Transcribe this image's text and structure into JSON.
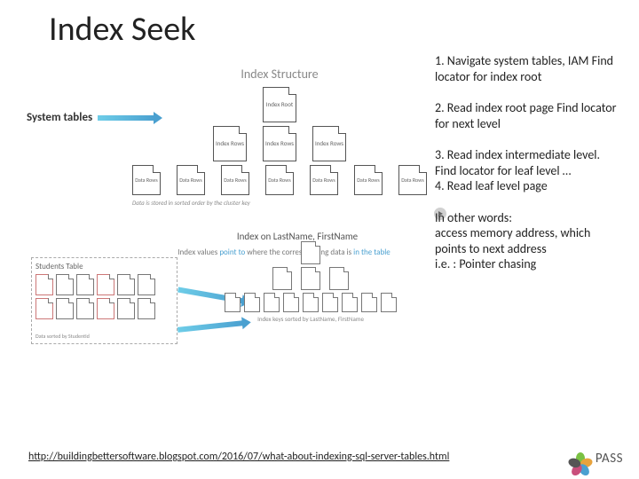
{
  "title": "Index Seek",
  "system_tables_label": "System tables",
  "upper_diagram": {
    "title": "Index Structure",
    "root_label": "Index\nRoot",
    "mid_label": "Index\nRows",
    "leaf_label": "Data\nRows",
    "footer": "Data is stored in sorted order by the cluster key",
    "mid_count": 3,
    "leaf_count": 7,
    "colors": {
      "page_border": "#555555",
      "text": "#888888"
    }
  },
  "lower_diagram": {
    "subtitle": "Index on LastName, FirstName",
    "students_title": "Students Table",
    "students_footer": "Data sorted by StudentId",
    "tree_footer": "Index keys sorted by LastName, FirstName",
    "caption_prefix": "Index values ",
    "caption_emph": "point to",
    "caption_mid": " where the corresponding data is ",
    "caption_emph2": "in the table",
    "tree_mid_count": 3,
    "tree_leaf_count": 9,
    "students_count": 12
  },
  "steps": {
    "s1": "1. Navigate system tables, IAM Find locator for index root",
    "s2": "2. Read index root page Find locator for next level",
    "s3": "3. Read index intermediate level. Find locator for leaf level …\n4. Read leaf level page",
    "s4": "In other words:\naccess memory address, which points to next address\n i.e. : Pointer chasing"
  },
  "link": "http://buildingbettersoftware.blogspot.com/2016/07/what-about-indexing-sql-server-tables.html",
  "logo": {
    "text": "PASS",
    "colors": [
      "#7ac143",
      "#e8a33d",
      "#4aa0d0",
      "#c94f7c",
      "#555555"
    ]
  },
  "arrows": {
    "color_start": "#6ecde8",
    "color_end": "#4aa0d0"
  }
}
